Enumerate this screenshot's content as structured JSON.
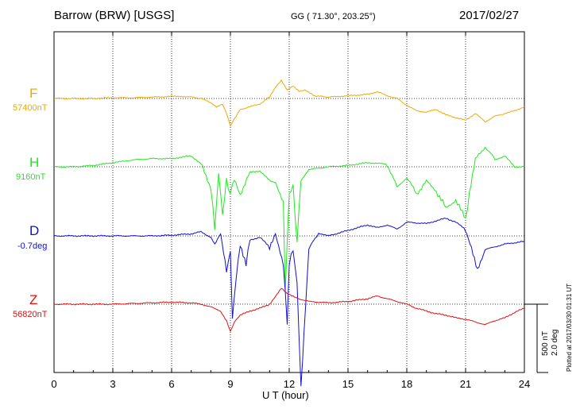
{
  "header": {
    "station": "Barrow (BRW)  [USGS]",
    "coords": "GG ( 71.30°, 203.25°)",
    "date": "2017/02/27"
  },
  "footer": {
    "xlabel": "U T (hour)",
    "plotted": "Plotted at 2017/03/30 01:31  UT"
  },
  "scale": {
    "line1": "500 nT",
    "line2": "2.0 deg"
  },
  "colors": {
    "F": "#f0a800",
    "H": "#1ee81e",
    "D": "#1010d0",
    "Z": "#e01010"
  },
  "chart_data": {
    "type": "line",
    "title": "Barrow (BRW)  [USGS]",
    "xlabel": "U T (hour)",
    "xlim": [
      0,
      24
    ],
    "xticks": [
      "0",
      "3",
      "6",
      "9",
      "12",
      "15",
      "18",
      "21",
      "24"
    ],
    "grid": true,
    "series": [
      {
        "name": "F",
        "baseline": "57400nT",
        "x": [
          0,
          1,
          2,
          3,
          4,
          5,
          6,
          6.8,
          7.5,
          8,
          8.3,
          8.6,
          8.8,
          9,
          9.2,
          9.5,
          10,
          10.5,
          11,
          11.3,
          11.6,
          11.9,
          12.2,
          12.5,
          12.8,
          13.3,
          14,
          15,
          16,
          16.5,
          17,
          17.5,
          18,
          18.5,
          19,
          19.5,
          20,
          20.5,
          21,
          21.5,
          22,
          22.5,
          23,
          23.5,
          24
        ],
        "v": [
          0,
          0,
          0,
          5,
          5,
          10,
          15,
          15,
          0,
          -30,
          -60,
          -40,
          -110,
          -200,
          -150,
          -80,
          -60,
          -40,
          10,
          80,
          130,
          60,
          90,
          50,
          60,
          20,
          10,
          20,
          30,
          50,
          20,
          0,
          -50,
          -90,
          -100,
          -80,
          -120,
          -140,
          -160,
          -110,
          -170,
          -130,
          -110,
          -90,
          -60
        ]
      },
      {
        "name": "H",
        "baseline": "9160nT",
        "x": [
          0,
          1,
          2,
          3,
          4,
          5,
          6,
          7,
          7.5,
          8,
          8.2,
          8.4,
          8.6,
          8.8,
          9,
          9.2,
          9.5,
          10,
          10.5,
          11,
          11.3,
          11.7,
          11.8,
          12,
          12.2,
          12.4,
          12.6,
          13,
          14,
          15,
          16,
          17,
          17.5,
          18,
          18.5,
          19,
          19.5,
          20,
          20.5,
          21,
          21.2,
          21.5,
          22,
          22.5,
          23,
          23.5,
          24
        ],
        "v": [
          0,
          0,
          10,
          30,
          50,
          60,
          60,
          80,
          20,
          -150,
          -450,
          -50,
          -350,
          -100,
          -200,
          -80,
          -200,
          -40,
          -30,
          -100,
          -120,
          -250,
          -900,
          -200,
          -150,
          -550,
          -100,
          -20,
          0,
          10,
          30,
          20,
          -150,
          -80,
          -200,
          -100,
          -180,
          -300,
          -250,
          -380,
          -200,
          50,
          150,
          50,
          80,
          0,
          0
        ]
      },
      {
        "name": "D",
        "baseline": "-0.7deg",
        "x": [
          0,
          1,
          2,
          3,
          4,
          5,
          6,
          7,
          7.5,
          8,
          8.2,
          8.5,
          8.8,
          9,
          9.1,
          9.3,
          9.5,
          9.8,
          10,
          10.5,
          11,
          11.3,
          11.7,
          11.9,
          12,
          12.2,
          12.4,
          12.6,
          13,
          13.5,
          14,
          15,
          16,
          16.5,
          17,
          17.5,
          18,
          19,
          20,
          20.5,
          21,
          21.3,
          21.6,
          22,
          22.5,
          23,
          23.5,
          24
        ],
        "v": [
          0,
          0,
          0,
          0,
          0,
          0,
          5,
          15,
          30,
          -10,
          -60,
          20,
          -250,
          -120,
          -600,
          -300,
          -60,
          -200,
          -30,
          -10,
          -80,
          20,
          -200,
          -650,
          -200,
          -100,
          -350,
          -1100,
          -100,
          20,
          0,
          40,
          80,
          60,
          80,
          50,
          100,
          90,
          130,
          100,
          50,
          -80,
          -240,
          -100,
          -80,
          -60,
          -50,
          -40
        ]
      },
      {
        "name": "Z",
        "baseline": "56820nT",
        "x": [
          0,
          1,
          2,
          3,
          4,
          5,
          6,
          7,
          7.5,
          8,
          8.5,
          8.8,
          9,
          9.2,
          9.5,
          10,
          10.5,
          11,
          11.3,
          11.6,
          11.9,
          12.2,
          12.5,
          13,
          14,
          15,
          16,
          16.5,
          17,
          17.5,
          18,
          18.5,
          19,
          19.5,
          20,
          20.5,
          21,
          21.5,
          22,
          22.5,
          23,
          23.5,
          24
        ],
        "v": [
          0,
          0,
          0,
          0,
          5,
          10,
          15,
          10,
          0,
          -20,
          -50,
          -120,
          -200,
          -130,
          -80,
          -50,
          -30,
          0,
          60,
          120,
          80,
          60,
          40,
          20,
          10,
          20,
          40,
          60,
          40,
          20,
          0,
          -30,
          -50,
          -70,
          -80,
          -100,
          -110,
          -130,
          -150,
          -120,
          -100,
          -60,
          -30
        ]
      }
    ]
  }
}
